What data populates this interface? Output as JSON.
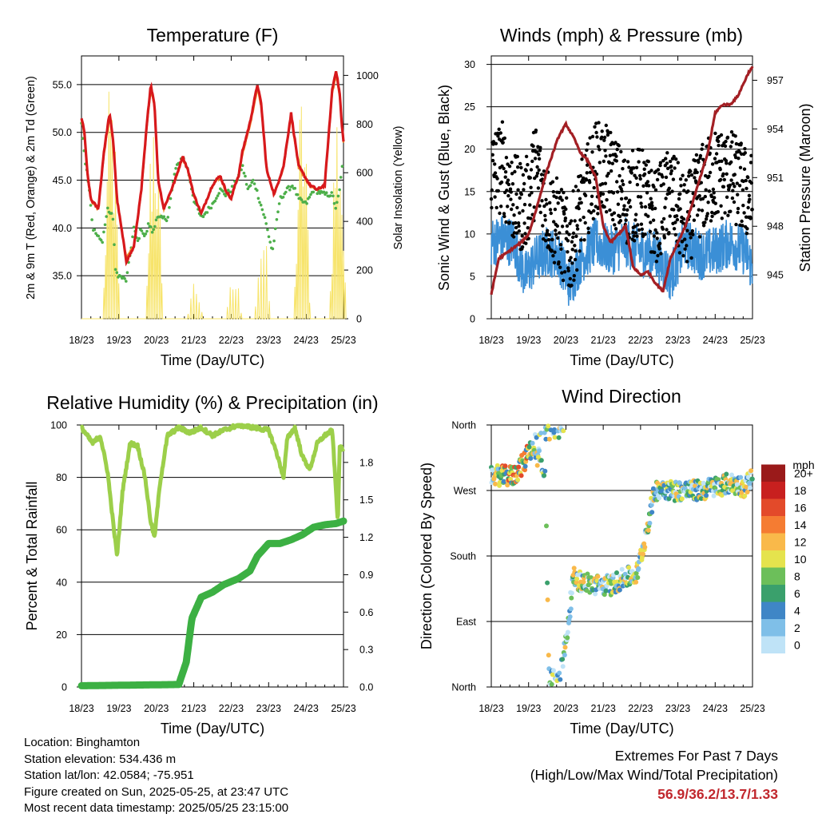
{
  "time_ticks": [
    "18/23",
    "19/23",
    "20/23",
    "21/23",
    "22/23",
    "23/23",
    "24/23",
    "25/23"
  ],
  "colors": {
    "temp_2m": "#d7191c",
    "temp_9m": "#f28e2b",
    "dewpoint": "#4daf4a",
    "solar": "#f7e46b",
    "wind": "#3b8fd6",
    "gust": "#000000",
    "pressure": "#a31f24",
    "rh": "#9ccf4a",
    "rain": "#3cb043",
    "extremes": "#c1272d"
  },
  "chart_data": [
    {
      "id": "temperature",
      "type": "line",
      "title": "Temperature (F)",
      "xlabel": "Time (Day/UTC)",
      "ylabel": "2m & 9m T (Red, Orange) & 2m Td (Green)",
      "y2label": "Solar Insolation (Yellow)",
      "x_ticks": [
        "18/23",
        "19/23",
        "20/23",
        "21/23",
        "22/23",
        "23/23",
        "24/23",
        "25/23"
      ],
      "y_ticks": [
        "35.0",
        "40.0",
        "45.0",
        "50.0",
        "55.0"
      ],
      "y2_ticks": [
        "0",
        "200",
        "400",
        "600",
        "800",
        "1000"
      ],
      "ylim": [
        30.5,
        58
      ],
      "y2lim": [
        0,
        1080
      ],
      "series": [
        {
          "id": "temp_2m",
          "x": [
            0,
            0.08,
            0.15,
            0.25,
            0.45,
            0.6,
            0.75,
            0.85,
            0.95,
            1.2,
            1.4,
            1.6,
            1.75,
            1.85,
            1.95,
            2.05,
            2.2,
            2.5,
            2.7,
            2.85,
            3.0,
            3.2,
            3.5,
            3.7,
            3.85,
            4.0,
            4.1,
            4.2,
            4.3,
            4.5,
            4.7,
            4.8,
            4.95,
            5.15,
            5.4,
            5.6,
            5.8,
            6.1,
            6.3,
            6.5,
            6.7,
            6.8,
            6.9,
            6.95,
            7.0
          ],
          "values": [
            51.5,
            50,
            46,
            43,
            42,
            48,
            52,
            49,
            43,
            36.5,
            38,
            44,
            51,
            55,
            53,
            45,
            42,
            45,
            47.5,
            46,
            43.5,
            41.5,
            44.5,
            45.5,
            44,
            43,
            44.5,
            45.5,
            48,
            51,
            55,
            53,
            46,
            43.5,
            46.5,
            52,
            46.5,
            44.5,
            44,
            44.5,
            54.5,
            56.5,
            54,
            51,
            49
          ]
        },
        {
          "id": "temp_9m",
          "x": [
            0,
            0.08,
            0.15,
            0.25,
            0.45,
            0.6,
            0.75,
            0.85,
            0.95,
            1.2,
            1.4,
            1.6,
            1.75,
            1.85,
            1.95,
            2.05,
            2.2,
            2.5,
            2.7,
            2.85,
            3.0,
            3.2,
            3.5,
            3.7,
            3.85,
            4.0,
            4.1,
            4.2,
            4.3,
            4.5,
            4.7,
            4.8,
            4.95,
            5.15,
            5.4,
            5.6,
            5.8,
            6.1,
            6.3,
            6.5,
            6.7,
            6.8,
            6.9,
            6.95,
            7.0
          ],
          "values": [
            51.2,
            49.7,
            45.8,
            42.9,
            41.9,
            47.6,
            51.6,
            48.7,
            43,
            36.8,
            38.2,
            43.8,
            50.6,
            54.5,
            52.7,
            44.9,
            42,
            44.9,
            47.3,
            45.9,
            43.4,
            41.6,
            44.4,
            45.3,
            43.9,
            43,
            44.4,
            45.3,
            47.7,
            50.6,
            54.6,
            52.7,
            45.9,
            43.5,
            46.3,
            51.6,
            46.3,
            44.4,
            44,
            44.4,
            54,
            56,
            53.7,
            50.8,
            49
          ]
        },
        {
          "id": "dewpoint",
          "x": [
            0,
            0.1,
            0.2,
            0.3,
            0.45,
            0.55,
            0.7,
            0.85,
            0.9,
            1.0,
            1.2,
            1.4,
            1.5,
            1.6,
            1.7,
            1.8,
            1.9,
            2.0,
            2.3,
            2.5,
            2.7,
            2.85,
            3.0,
            3.2,
            3.5,
            3.7,
            3.85,
            4.0,
            4.15,
            4.3,
            4.45,
            4.6,
            4.75,
            4.9,
            5.1,
            5.3,
            5.5,
            5.65,
            5.8,
            6.0,
            6.2,
            6.5,
            6.7,
            6.8,
            6.9,
            7.0
          ],
          "values": [
            51,
            47,
            44.5,
            40,
            39,
            38.5,
            42,
            41,
            35.5,
            35,
            34.5,
            40,
            38.5,
            40,
            39,
            40.5,
            39.5,
            41,
            41,
            46,
            47.5,
            46,
            43,
            41,
            42.5,
            44,
            43.5,
            44,
            45,
            46.5,
            44,
            45,
            43,
            41,
            37.5,
            43,
            44,
            44.5,
            43,
            42.5,
            44,
            43.5,
            43.5,
            42,
            44,
            48
          ]
        },
        {
          "id": "solar",
          "peaks": [
            {
              "x": 0.8,
              "v": 1050
            },
            {
              "x": 1.95,
              "v": 1040
            },
            {
              "x": 3.05,
              "v": 180
            },
            {
              "x": 4.1,
              "v": 200
            },
            {
              "x": 4.85,
              "v": 430
            },
            {
              "x": 5.9,
              "v": 1000
            },
            {
              "x": 6.85,
              "v": 990
            }
          ]
        }
      ]
    },
    {
      "id": "winds_pressure",
      "type": "scatter",
      "title": "Winds (mph) & Pressure (mb)",
      "xlabel": "Time (Day/UTC)",
      "ylabel": "Sonic Wind & Gust (Blue, Black)",
      "y2label": "Station Pressure (Maroon)",
      "x_ticks": [
        "18/23",
        "19/23",
        "20/23",
        "21/23",
        "22/23",
        "23/23",
        "24/23",
        "25/23"
      ],
      "y_ticks": [
        "0",
        "5",
        "10",
        "15",
        "20",
        "25",
        "30"
      ],
      "y2_ticks": [
        "945",
        "948",
        "951",
        "954",
        "957"
      ],
      "ylim": [
        0,
        31
      ],
      "y2lim": [
        942.3,
        958.5
      ],
      "series": [
        {
          "id": "wind",
          "x": [
            0,
            0.3,
            0.6,
            0.9,
            1.2,
            1.5,
            1.8,
            2.1,
            2.4,
            2.8,
            3.2,
            3.6,
            4.0,
            4.4,
            4.8,
            5.2,
            5.6,
            6.0,
            6.4,
            6.8,
            7.0
          ],
          "values": [
            9,
            9.5,
            9,
            5,
            7,
            8,
            7.5,
            4,
            7,
            9,
            8,
            9,
            8,
            7.5,
            5,
            9,
            7.5,
            8,
            9,
            8,
            6
          ]
        },
        {
          "id": "gust",
          "x": [
            0,
            0.3,
            0.6,
            0.9,
            1.2,
            1.5,
            1.8,
            2.1,
            2.4,
            2.8,
            3.2,
            3.6,
            4.0,
            4.4,
            4.8,
            5.2,
            5.6,
            6.0,
            6.4,
            6.8,
            7.0
          ],
          "values": [
            17,
            18,
            14,
            13,
            18,
            13,
            11,
            8,
            13,
            18,
            17,
            14,
            15,
            12,
            15,
            11,
            15,
            17,
            17,
            15,
            14
          ]
        },
        {
          "id": "pressure",
          "x": [
            0,
            0.2,
            0.5,
            0.8,
            1.0,
            1.2,
            1.5,
            1.8,
            2.0,
            2.2,
            2.4,
            2.6,
            2.8,
            3.0,
            3.2,
            3.4,
            3.6,
            3.8,
            4.0,
            4.2,
            4.4,
            4.6,
            4.8,
            5.0,
            5.2,
            5.4,
            5.6,
            5.8,
            6.0,
            6.2,
            6.4,
            6.6,
            6.8,
            6.9,
            7.0
          ],
          "values": [
            943.8,
            946,
            946.5,
            947,
            947.5,
            949,
            951.5,
            953.5,
            954.3,
            953.5,
            952.5,
            952,
            951,
            948,
            947,
            947.5,
            948,
            945.5,
            945,
            945.2,
            944.5,
            944,
            946,
            947,
            948,
            949.5,
            951,
            952.5,
            955,
            955.5,
            955.5,
            956,
            957,
            957.5,
            957.8
          ]
        }
      ]
    },
    {
      "id": "humidity_precip",
      "type": "line",
      "title": "Relative Humidity (%) & Precipitation (in)",
      "xlabel": "Time (Day/UTC)",
      "ylabel": "Percent & Total Rainfall",
      "x_ticks": [
        "18/23",
        "19/23",
        "20/23",
        "21/23",
        "22/23",
        "23/23",
        "24/23",
        "25/23"
      ],
      "y_ticks": [
        "0",
        "20",
        "40",
        "60",
        "80",
        "100"
      ],
      "y2_ticks": [
        "0.0",
        "0.3",
        "0.6",
        "0.9",
        "1.2",
        "1.5",
        "1.8"
      ],
      "ylim": [
        0,
        100
      ],
      "y2lim": [
        0,
        2.1
      ],
      "series": [
        {
          "id": "rh",
          "x": [
            0,
            0.15,
            0.3,
            0.5,
            0.7,
            0.85,
            0.95,
            1.1,
            1.3,
            1.5,
            1.7,
            1.85,
            1.95,
            2.1,
            2.3,
            2.6,
            2.9,
            3.2,
            3.5,
            3.8,
            4.2,
            4.6,
            5.0,
            5.2,
            5.4,
            5.5,
            5.7,
            5.9,
            6.1,
            6.3,
            6.5,
            6.7,
            6.85,
            6.9,
            7.0
          ],
          "values": [
            99,
            96,
            93,
            96,
            82,
            62,
            50,
            75,
            93,
            92,
            80,
            63,
            57,
            78,
            96,
            99,
            97,
            99,
            96,
            98,
            100,
            99,
            98,
            90,
            80,
            95,
            99,
            88,
            83,
            93,
            96,
            98,
            63,
            92,
            90
          ]
        },
        {
          "id": "rain",
          "x": [
            0,
            2.6,
            2.8,
            2.95,
            3.2,
            3.5,
            3.8,
            4.2,
            4.5,
            4.7,
            5.0,
            5.3,
            5.6,
            5.9,
            6.2,
            6.5,
            6.8,
            7.0
          ],
          "values": [
            0.01,
            0.02,
            0.2,
            0.55,
            0.72,
            0.76,
            0.82,
            0.87,
            0.93,
            1.05,
            1.15,
            1.15,
            1.18,
            1.22,
            1.28,
            1.3,
            1.31,
            1.33
          ]
        }
      ]
    },
    {
      "id": "wind_direction",
      "type": "scatter",
      "title": "Wind Direction",
      "xlabel": "Time (Day/UTC)",
      "ylabel": "Direction (Colored By Speed)",
      "x_ticks": [
        "18/23",
        "19/23",
        "20/23",
        "21/23",
        "22/23",
        "23/23",
        "24/23",
        "25/23"
      ],
      "y_ticks": [
        "North",
        "East",
        "South",
        "West",
        "North"
      ],
      "legend_title": "mph",
      "legend_labels": [
        "0",
        "2",
        "4",
        "6",
        "8",
        "10",
        "12",
        "14",
        "16",
        "18",
        "20+"
      ],
      "legend_colors": [
        "#bfe3f7",
        "#7fbfe8",
        "#3f86c6",
        "#3aa06c",
        "#6cbf5a",
        "#e5e34d",
        "#f9b94a",
        "#f57c32",
        "#e34a2a",
        "#c8201f",
        "#9a1a1a"
      ],
      "ylim": [
        0,
        360
      ],
      "series": [
        {
          "id": "direction",
          "x": [
            0,
            0.3,
            0.6,
            0.9,
            1.0,
            1.2,
            1.45,
            1.55,
            1.8,
            2.0,
            2.2,
            2.4,
            2.8,
            3.2,
            3.6,
            3.9,
            4.1,
            4.3,
            4.4,
            4.6,
            4.8,
            5.2,
            5.6,
            6.0,
            6.4,
            6.8,
            7.0
          ],
          "values": [
            292,
            290,
            290,
            310,
            330,
            320,
            300,
            12,
            8,
            60,
            150,
            145,
            140,
            140,
            150,
            155,
            200,
            250,
            270,
            275,
            270,
            270,
            270,
            275,
            280,
            275,
            290
          ]
        }
      ]
    }
  ],
  "footer": {
    "location": "Location: Binghamton",
    "elevation": "Station elevation: 534.436 m",
    "latlon": "Station lat/lon: 42.0584; -75.951",
    "created": "Figure created on Sun, 2025-05-25, at 23:47 UTC",
    "recent": "Most recent data timestamp: 2025/05/25 23:15:00"
  },
  "extremes": {
    "title": "Extremes For Past 7 Days",
    "subtitle": "(High/Low/Max Wind/Total Precipitation)",
    "values": "56.9/36.2/13.7/1.33"
  }
}
